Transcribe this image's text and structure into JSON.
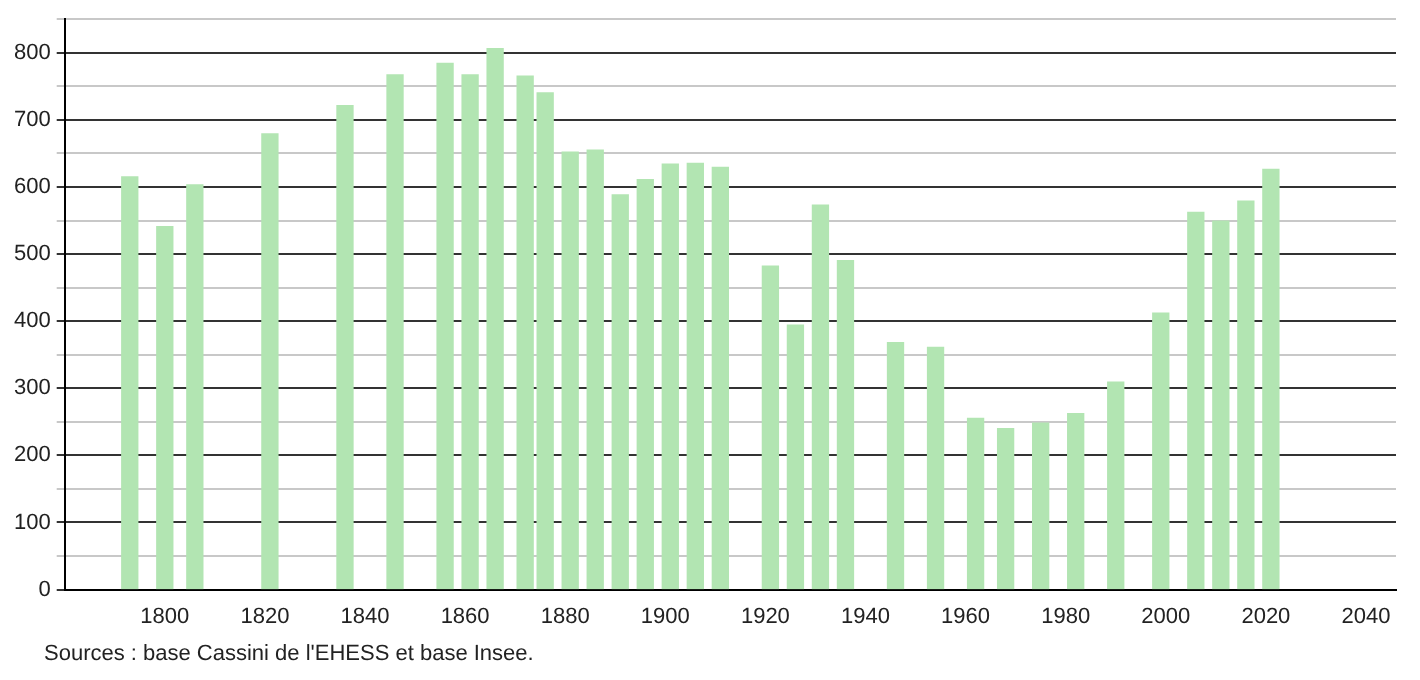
{
  "chart_data": {
    "type": "bar",
    "color": "#b2e5b2",
    "x": [
      1793,
      1800,
      1806,
      1821,
      1836,
      1846,
      1856,
      1861,
      1866,
      1872,
      1876,
      1881,
      1886,
      1891,
      1896,
      1901,
      1906,
      1911,
      1921,
      1926,
      1931,
      1936,
      1946,
      1954,
      1962,
      1968,
      1975,
      1982,
      1990,
      1999,
      2006,
      2011,
      2016,
      2021
    ],
    "values": [
      615,
      541,
      603,
      679,
      721,
      767,
      784,
      767,
      806,
      765,
      740,
      652,
      655,
      588,
      611,
      634,
      635,
      629,
      482,
      394,
      573,
      490,
      368,
      361,
      255,
      240,
      248,
      262,
      309,
      412,
      562,
      549,
      579,
      626
    ],
    "xlim": [
      1780,
      2046
    ],
    "xticks": [
      1800,
      1820,
      1840,
      1860,
      1880,
      1900,
      1920,
      1940,
      1960,
      1980,
      2000,
      2020,
      2040
    ],
    "ylim": [
      0,
      850
    ],
    "yticks": [
      0,
      {
        "value": 50,
        "label": null
      },
      100,
      {
        "value": 150,
        "label": null
      },
      200,
      {
        "value": 250,
        "label": null
      },
      300,
      {
        "value": 350,
        "label": null
      },
      400,
      {
        "value": 450,
        "label": null
      },
      500,
      {
        "value": 550,
        "label": null
      },
      600,
      {
        "value": 650,
        "label": null
      },
      700,
      {
        "value": 750,
        "label": null
      },
      800,
      {
        "value": 850,
        "label": null
      }
    ],
    "grid": "y",
    "legend": false,
    "annotations": [
      "Sources : base Cassini de l'EHESS et base Insee."
    ]
  }
}
